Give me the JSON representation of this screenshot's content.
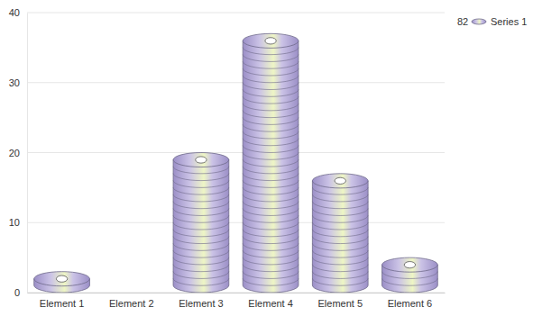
{
  "chart_data": {
    "type": "bar",
    "categories": [
      "Element 1",
      "Element 2",
      "Element 3",
      "Element 4",
      "Element 5",
      "Element 6"
    ],
    "series": [
      {
        "name": "Series 1",
        "color": "#9b8fc7",
        "total": 82,
        "values": [
          3,
          0,
          20,
          37,
          17,
          5
        ]
      }
    ],
    "ylim": [
      0,
      40
    ],
    "yticks": [
      0,
      10,
      20,
      30,
      40
    ],
    "grid": true,
    "legend": "top-right"
  }
}
